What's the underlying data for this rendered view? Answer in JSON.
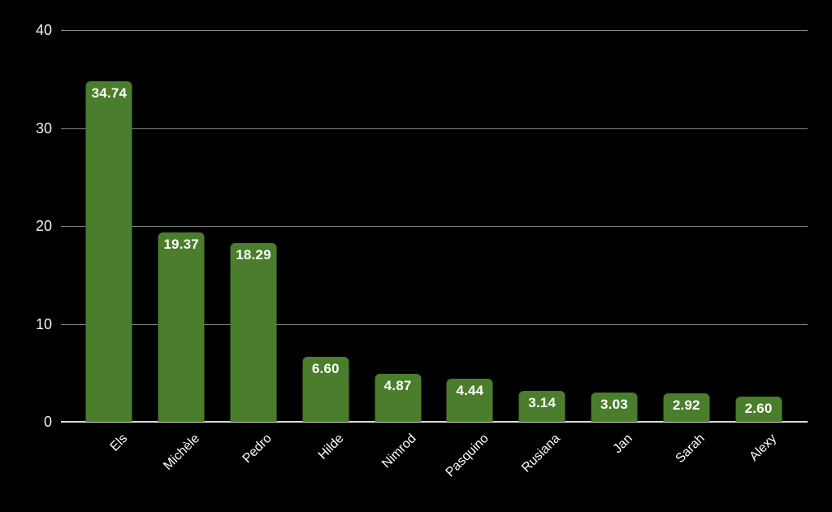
{
  "chart_data": {
    "type": "bar",
    "title": "",
    "xlabel": "",
    "ylabel": "",
    "categories": [
      "Els",
      "Michèle",
      "Pedro",
      "Hilde",
      "Nimrod",
      "Pasquino",
      "Rusiana",
      "Jan",
      "Sarah",
      "Alexy"
    ],
    "values": [
      34.74,
      19.37,
      18.29,
      6.6,
      4.87,
      4.44,
      3.14,
      3.03,
      2.92,
      2.6
    ],
    "value_labels": [
      "34.74",
      "19.37",
      "18.29",
      "6.60",
      "4.87",
      "4.44",
      "3.14",
      "3.03",
      "2.92",
      "2.60"
    ],
    "ylim": [
      0,
      40
    ],
    "yticks": [
      0,
      10,
      20,
      30,
      40
    ],
    "ytick_labels": [
      "0",
      "10",
      "20",
      "30",
      "40"
    ],
    "grid": true,
    "legend_position": "none",
    "annotation_position": "inside-top",
    "x_label_rotation_deg": -45,
    "colors": {
      "background": "#000000",
      "bar": "#4a7d2c",
      "gridline": "#8a8a8a",
      "axis_line": "#dcdcdc",
      "tick_label": "#f2f2f2",
      "annotation_text": "#ffffff"
    }
  }
}
